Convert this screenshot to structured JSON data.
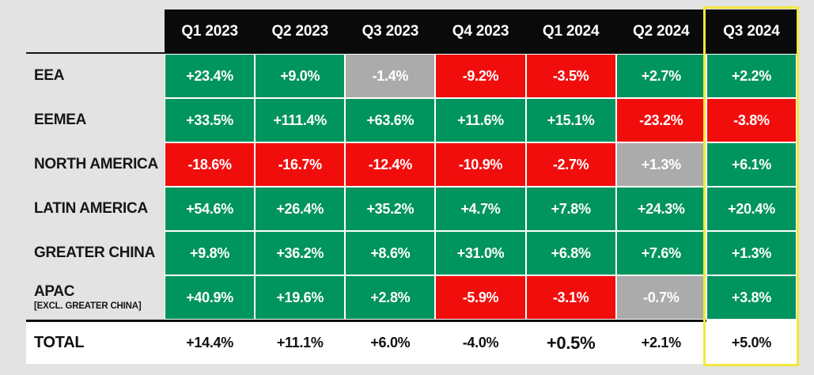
{
  "colors": {
    "page_background": "#e3e3e3",
    "header_background": "#0a0a0a",
    "positive": "#00945e",
    "negative": "#f20d0d",
    "neutral": "#ababab",
    "total_background": "#ffffff",
    "highlight_border": "#f2e73e",
    "cell_text": "#ffffff",
    "label_text": "#161616"
  },
  "table": {
    "columns": [
      {
        "label": "Q1 2023",
        "highlighted": false
      },
      {
        "label": "Q2 2023",
        "highlighted": false
      },
      {
        "label": "Q3 2023",
        "highlighted": false
      },
      {
        "label": "Q4 2023",
        "highlighted": false
      },
      {
        "label": "Q1 2024",
        "highlighted": false
      },
      {
        "label": "Q2 2024",
        "highlighted": false
      },
      {
        "label": "Q3 2024",
        "highlighted": true
      }
    ],
    "rows": [
      {
        "label": "EEA",
        "sublabel": "",
        "cells": [
          {
            "value": "+23.4%",
            "tone": "positive"
          },
          {
            "value": "+9.0%",
            "tone": "positive"
          },
          {
            "value": "-1.4%",
            "tone": "neutral"
          },
          {
            "value": "-9.2%",
            "tone": "negative"
          },
          {
            "value": "-3.5%",
            "tone": "negative"
          },
          {
            "value": "+2.7%",
            "tone": "positive"
          },
          {
            "value": "+2.2%",
            "tone": "positive"
          }
        ]
      },
      {
        "label": "EEMEA",
        "sublabel": "",
        "cells": [
          {
            "value": "+33.5%",
            "tone": "positive"
          },
          {
            "value": "+111.4%",
            "tone": "positive"
          },
          {
            "value": "+63.6%",
            "tone": "positive"
          },
          {
            "value": "+11.6%",
            "tone": "positive"
          },
          {
            "value": "+15.1%",
            "tone": "positive"
          },
          {
            "value": "-23.2%",
            "tone": "negative"
          },
          {
            "value": "-3.8%",
            "tone": "negative"
          }
        ]
      },
      {
        "label": "NORTH AMERICA",
        "sublabel": "",
        "cells": [
          {
            "value": "-18.6%",
            "tone": "negative"
          },
          {
            "value": "-16.7%",
            "tone": "negative"
          },
          {
            "value": "-12.4%",
            "tone": "negative"
          },
          {
            "value": "-10.9%",
            "tone": "negative"
          },
          {
            "value": "-2.7%",
            "tone": "negative"
          },
          {
            "value": "+1.3%",
            "tone": "neutral"
          },
          {
            "value": "+6.1%",
            "tone": "positive"
          }
        ]
      },
      {
        "label": "LATIN AMERICA",
        "sublabel": "",
        "cells": [
          {
            "value": "+54.6%",
            "tone": "positive"
          },
          {
            "value": "+26.4%",
            "tone": "positive"
          },
          {
            "value": "+35.2%",
            "tone": "positive"
          },
          {
            "value": "+4.7%",
            "tone": "positive"
          },
          {
            "value": "+7.8%",
            "tone": "positive"
          },
          {
            "value": "+24.3%",
            "tone": "positive"
          },
          {
            "value": "+20.4%",
            "tone": "positive"
          }
        ]
      },
      {
        "label": "GREATER CHINA",
        "sublabel": "",
        "cells": [
          {
            "value": "+9.8%",
            "tone": "positive"
          },
          {
            "value": "+36.2%",
            "tone": "positive"
          },
          {
            "value": "+8.6%",
            "tone": "positive"
          },
          {
            "value": "+31.0%",
            "tone": "positive"
          },
          {
            "value": "+6.8%",
            "tone": "positive"
          },
          {
            "value": "+7.6%",
            "tone": "positive"
          },
          {
            "value": "+1.3%",
            "tone": "positive"
          }
        ]
      },
      {
        "label": "APAC",
        "sublabel": "[EXCL. GREATER CHINA]",
        "cells": [
          {
            "value": "+40.9%",
            "tone": "positive"
          },
          {
            "value": "+19.6%",
            "tone": "positive"
          },
          {
            "value": "+2.8%",
            "tone": "positive"
          },
          {
            "value": "-5.9%",
            "tone": "negative"
          },
          {
            "value": "-3.1%",
            "tone": "negative"
          },
          {
            "value": "-0.7%",
            "tone": "neutral"
          },
          {
            "value": "+3.8%",
            "tone": "positive"
          }
        ]
      }
    ],
    "total": {
      "label": "TOTAL",
      "cells": [
        {
          "value": "+14.4%",
          "emphasis": false
        },
        {
          "value": "+11.1%",
          "emphasis": false
        },
        {
          "value": "+6.0%",
          "emphasis": false
        },
        {
          "value": "-4.0%",
          "emphasis": false
        },
        {
          "value": "+0.5%",
          "emphasis": true
        },
        {
          "value": "+2.1%",
          "emphasis": false
        },
        {
          "value": "+5.0%",
          "emphasis": false
        }
      ]
    }
  },
  "chart_data": {
    "type": "heatmap",
    "title": "",
    "columns": [
      "Q1 2023",
      "Q2 2023",
      "Q3 2023",
      "Q4 2023",
      "Q1 2024",
      "Q2 2024",
      "Q3 2024"
    ],
    "rows": [
      "EEA",
      "EEMEA",
      "NORTH AMERICA",
      "LATIN AMERICA",
      "GREATER CHINA",
      "APAC [EXCL. GREATER CHINA]",
      "TOTAL"
    ],
    "values_pct": [
      [
        23.4,
        9.0,
        -1.4,
        -9.2,
        -3.5,
        2.7,
        2.2
      ],
      [
        33.5,
        111.4,
        63.6,
        11.6,
        15.1,
        -23.2,
        -3.8
      ],
      [
        -18.6,
        -16.7,
        -12.4,
        -10.9,
        -2.7,
        1.3,
        6.1
      ],
      [
        54.6,
        26.4,
        35.2,
        4.7,
        7.8,
        24.3,
        20.4
      ],
      [
        9.8,
        36.2,
        8.6,
        31.0,
        6.8,
        7.6,
        1.3
      ],
      [
        40.9,
        19.6,
        2.8,
        -5.9,
        -3.1,
        -0.7,
        3.8
      ],
      [
        14.4,
        11.1,
        6.0,
        -4.0,
        0.5,
        2.1,
        5.0
      ]
    ],
    "cell_tone_legend": {
      "green": "positive growth",
      "red": "negative growth",
      "gray": "near-flat",
      "white": "total row"
    },
    "highlighted_column": "Q3 2024",
    "layout_hints": {
      "highlight": "yellow outline around Q3 2024 column",
      "grid": "white gutters between cells"
    }
  }
}
